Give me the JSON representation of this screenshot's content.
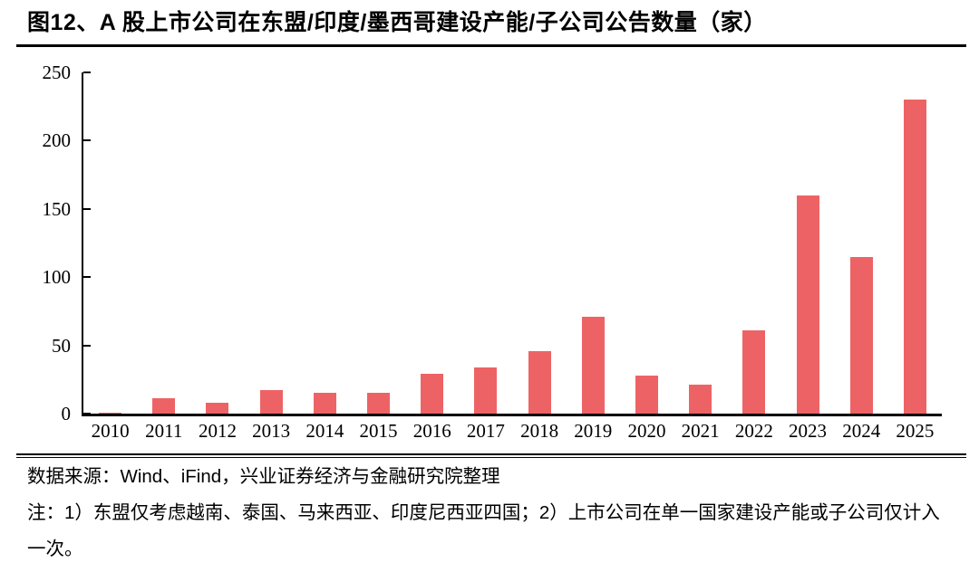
{
  "page": {
    "title": "图12、A 股上市公司在东盟/印度/墨西哥建设产能/子公司公告数量（家）"
  },
  "chart_data": {
    "type": "bar",
    "title": "图12、A 股上市公司在东盟/印度/墨西哥建设产能/子公司公告数量（家）",
    "categories": [
      "2010",
      "2011",
      "2012",
      "2013",
      "2014",
      "2015",
      "2016",
      "2017",
      "2018",
      "2019",
      "2020",
      "2021",
      "2022",
      "2023",
      "2024",
      "2025"
    ],
    "values": [
      1,
      11,
      8,
      17,
      15,
      15,
      29,
      34,
      46,
      71,
      28,
      21,
      61,
      160,
      115,
      230
    ],
    "xlabel": "",
    "ylabel": "",
    "ylim": [
      0,
      250
    ],
    "yticks": [
      0,
      50,
      100,
      150,
      200,
      250
    ],
    "grid": false,
    "legend": false,
    "bar_color": "#ED6365",
    "axis_color": "#000000"
  },
  "footer": {
    "source": "数据来源：Wind、iFind，兴业证券经济与金融研究院整理",
    "note": "注：1）东盟仅考虑越南、泰国、马来西亚、印度尼西亚四国；2）上市公司在单一国家建设产能或子公司仅计入一次。"
  }
}
